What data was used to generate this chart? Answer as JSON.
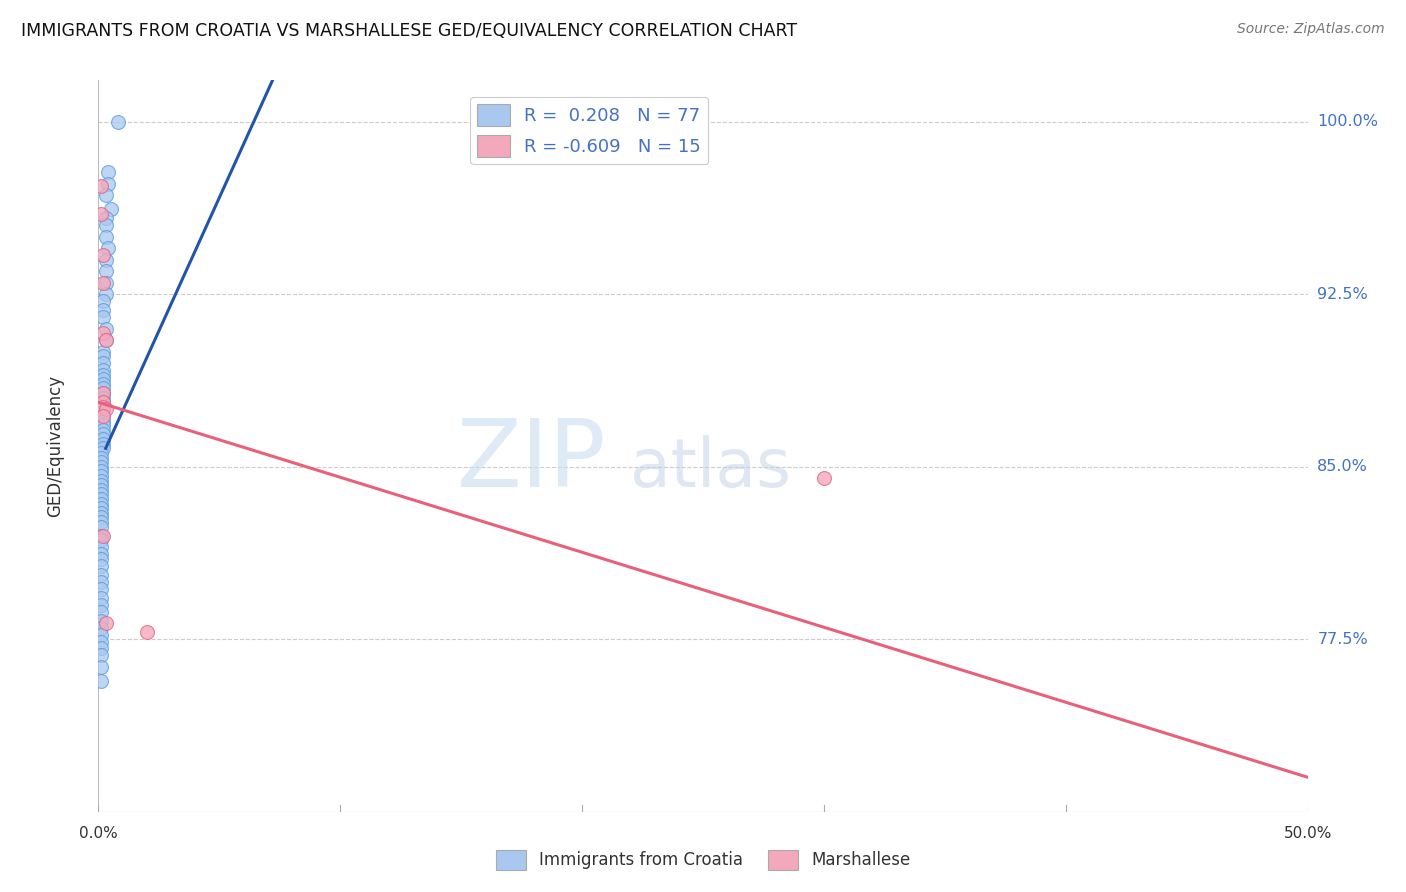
{
  "title": "IMMIGRANTS FROM CROATIA VS MARSHALLESE GED/EQUIVALENCY CORRELATION CHART",
  "source": "Source: ZipAtlas.com",
  "ylabel": "GED/Equivalency",
  "yticks": [
    0.775,
    0.85,
    0.925,
    1.0
  ],
  "ytick_labels": [
    "77.5%",
    "85.0%",
    "92.5%",
    "100.0%"
  ],
  "xmin": 0.0,
  "xmax": 0.5,
  "ymin": 0.7,
  "ymax": 1.018,
  "legend_r_blue": "0.208",
  "legend_n_blue": "77",
  "legend_r_pink": "-0.609",
  "legend_n_pink": "15",
  "blue_color": "#A8C8F0",
  "pink_color": "#F4A8BB",
  "blue_line_color": "#2255AA",
  "pink_line_color": "#E8607A",
  "blue_scatter_x": [
    0.008,
    0.004,
    0.004,
    0.003,
    0.005,
    0.003,
    0.003,
    0.003,
    0.004,
    0.003,
    0.003,
    0.003,
    0.003,
    0.002,
    0.002,
    0.002,
    0.003,
    0.003,
    0.002,
    0.002,
    0.002,
    0.002,
    0.002,
    0.002,
    0.002,
    0.002,
    0.002,
    0.002,
    0.002,
    0.002,
    0.002,
    0.002,
    0.002,
    0.002,
    0.002,
    0.002,
    0.002,
    0.002,
    0.002,
    0.001,
    0.001,
    0.001,
    0.001,
    0.001,
    0.001,
    0.001,
    0.001,
    0.001,
    0.001,
    0.001,
    0.001,
    0.001,
    0.001,
    0.001,
    0.001,
    0.001,
    0.001,
    0.001,
    0.001,
    0.001,
    0.001,
    0.001,
    0.001,
    0.001,
    0.001,
    0.001,
    0.001,
    0.001,
    0.001,
    0.001,
    0.001,
    0.001,
    0.001,
    0.001,
    0.001,
    0.001
  ],
  "blue_scatter_y": [
    1.0,
    0.978,
    0.973,
    0.968,
    0.962,
    0.958,
    0.955,
    0.95,
    0.945,
    0.94,
    0.935,
    0.93,
    0.925,
    0.922,
    0.918,
    0.915,
    0.91,
    0.905,
    0.9,
    0.898,
    0.895,
    0.892,
    0.89,
    0.888,
    0.886,
    0.884,
    0.882,
    0.88,
    0.878,
    0.876,
    0.874,
    0.872,
    0.87,
    0.868,
    0.866,
    0.864,
    0.862,
    0.86,
    0.858,
    0.856,
    0.854,
    0.852,
    0.85,
    0.848,
    0.846,
    0.844,
    0.842,
    0.84,
    0.838,
    0.836,
    0.834,
    0.832,
    0.83,
    0.828,
    0.826,
    0.824,
    0.82,
    0.818,
    0.815,
    0.812,
    0.81,
    0.807,
    0.803,
    0.8,
    0.797,
    0.793,
    0.79,
    0.787,
    0.783,
    0.78,
    0.777,
    0.774,
    0.771,
    0.768,
    0.763,
    0.757
  ],
  "pink_scatter_x": [
    0.001,
    0.001,
    0.002,
    0.002,
    0.002,
    0.003,
    0.002,
    0.002,
    0.002,
    0.003,
    0.002,
    0.002,
    0.02,
    0.3,
    0.003
  ],
  "pink_scatter_y": [
    0.972,
    0.96,
    0.942,
    0.93,
    0.908,
    0.905,
    0.882,
    0.878,
    0.876,
    0.875,
    0.872,
    0.82,
    0.778,
    0.845,
    0.782
  ],
  "blue_line_x": [
    0.003,
    0.072
  ],
  "blue_line_y": [
    0.858,
    1.018
  ],
  "pink_line_x": [
    0.0,
    0.5
  ],
  "pink_line_y": [
    0.878,
    0.715
  ],
  "watermark_zip": "ZIP",
  "watermark_atlas": "atlas",
  "xtick_positions": [
    0.0,
    0.1,
    0.2,
    0.3,
    0.4,
    0.5
  ],
  "xtick_show": [
    0.0,
    0.5
  ],
  "xtick_labels_show": [
    "0.0%",
    "50.0%"
  ]
}
